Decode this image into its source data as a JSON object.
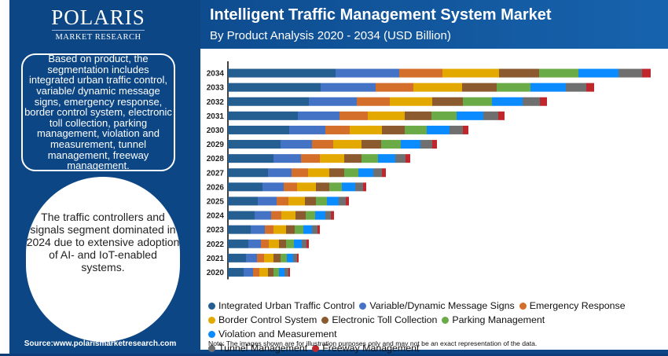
{
  "brand": {
    "name": "POLARIS",
    "sub": "MARKET RESEARCH"
  },
  "header": {
    "title": "Intelligent Traffic Management System Market",
    "subtitle": "By Product Analysis 2020 - 2034 (USD Billion)"
  },
  "info_box": "Based on product, the segmentation includes integrated urban traffic control, variable/ dynamic message signs, emergency response, border control system, electronic toll collection, parking management, violation and measurement, tunnel management, freeway management.",
  "highlight": "The traffic controllers and signals segment dominated in 2024 due to extensive adoption of AI- and IoT-enabled systems.",
  "source": "Source:www.polarismarketresearch.com",
  "note": "Note: The images shown are for illustration purposes only and may not be an exact representation of the data.",
  "chart_data": {
    "type": "bar",
    "orientation": "horizontal",
    "stacked": true,
    "title": "Intelligent Traffic Management System Market",
    "subtitle": "By Product Analysis 2020 - 2034 (USD Billion)",
    "xlabel": "",
    "ylabel": "",
    "grid": false,
    "legend_position": "bottom",
    "categories": [
      "2034",
      "2033",
      "2032",
      "2031",
      "2030",
      "2029",
      "2028",
      "2027",
      "2026",
      "2025",
      "2024",
      "2023",
      "2022",
      "2021",
      "2020"
    ],
    "series": [
      {
        "name": "Integrated Urban Traffic Control",
        "color": "#255e91",
        "values": [
          13.7,
          11.8,
          10.3,
          8.9,
          7.8,
          6.7,
          5.8,
          5.1,
          4.4,
          3.8,
          3.4,
          2.9,
          2.6,
          2.3,
          2.0
        ]
      },
      {
        "name": "Variable/Dynamic Message Signs",
        "color": "#4472c4",
        "values": [
          8.1,
          7.0,
          6.1,
          5.3,
          4.6,
          4.0,
          3.5,
          3.0,
          2.7,
          2.4,
          2.1,
          1.8,
          1.6,
          1.4,
          1.2
        ]
      },
      {
        "name": "Emergency Response",
        "color": "#d46f2b",
        "values": [
          5.5,
          4.8,
          4.2,
          3.6,
          3.1,
          2.7,
          2.4,
          2.1,
          1.7,
          1.5,
          1.3,
          1.1,
          1.0,
          0.9,
          0.8
        ]
      },
      {
        "name": "Border Control System",
        "color": "#e3a900",
        "values": [
          7.2,
          6.2,
          5.4,
          4.7,
          4.1,
          3.6,
          3.1,
          2.7,
          2.4,
          2.1,
          1.8,
          1.6,
          1.3,
          1.2,
          1.1
        ]
      },
      {
        "name": "Electronic Toll Collection",
        "color": "#8b5a2e",
        "values": [
          5.1,
          4.4,
          3.9,
          3.4,
          2.9,
          2.5,
          2.2,
          1.9,
          1.7,
          1.4,
          1.3,
          1.1,
          0.9,
          0.9,
          0.7
        ]
      },
      {
        "name": "Parking Management",
        "color": "#6aab47",
        "values": [
          5.0,
          4.3,
          3.7,
          3.2,
          2.8,
          2.5,
          2.1,
          1.8,
          1.6,
          1.4,
          1.2,
          1.1,
          1.0,
          0.8,
          0.7
        ]
      },
      {
        "name": "Violation and Measurement",
        "color": "#0a8bff",
        "values": [
          5.1,
          4.5,
          3.9,
          3.4,
          2.9,
          2.5,
          2.2,
          1.9,
          1.7,
          1.5,
          1.3,
          1.1,
          1.0,
          0.8,
          0.7
        ]
      },
      {
        "name": "Tunnel Management",
        "color": "#6f6f6f",
        "values": [
          3.0,
          2.6,
          2.2,
          1.9,
          1.7,
          1.5,
          1.3,
          1.1,
          1.0,
          0.9,
          0.7,
          0.7,
          0.6,
          0.5,
          0.5
        ]
      },
      {
        "name": "Freeway Management",
        "color": "#c0272d",
        "values": [
          1.1,
          1.0,
          0.9,
          0.8,
          0.7,
          0.6,
          0.6,
          0.5,
          0.4,
          0.4,
          0.4,
          0.3,
          0.3,
          0.2,
          0.2
        ]
      }
    ],
    "xlim": [
      0,
      55
    ]
  }
}
